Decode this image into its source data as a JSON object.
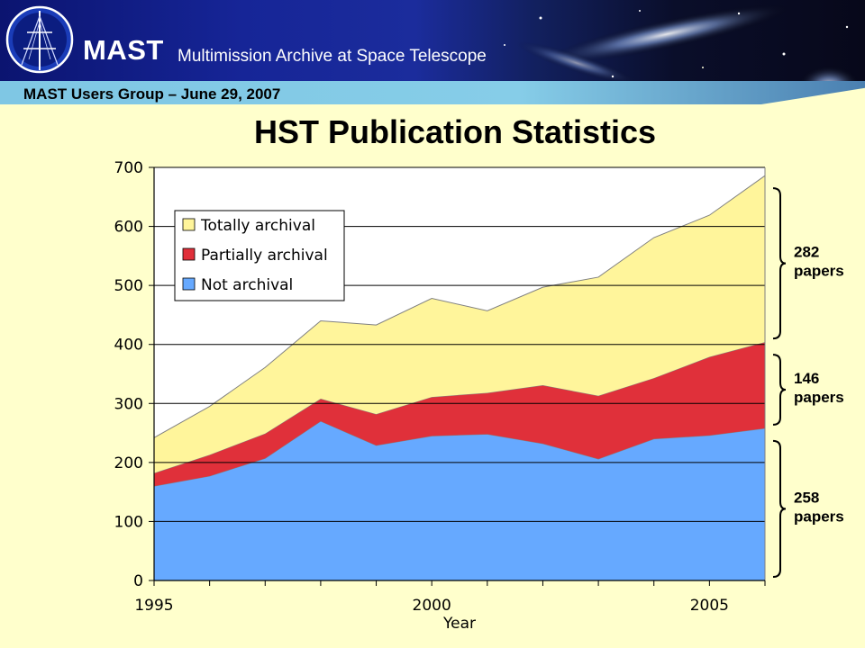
{
  "header": {
    "app_name": "MAST",
    "app_subtitle": "Multimission Archive at Space Telescope",
    "meeting": "MAST Users Group – June 29, 2007"
  },
  "colors": {
    "totally": "#FFF59B",
    "partially": "#E0303A",
    "not": "#66A9FF",
    "background": "#FFFFCC"
  },
  "chart_data": {
    "type": "area",
    "stacked": true,
    "title": "HST Publication Statistics",
    "xlabel": "Year",
    "ylabel": "",
    "x": [
      1995,
      1996,
      1997,
      1998,
      1999,
      2000,
      2001,
      2002,
      2003,
      2004,
      2005,
      2006
    ],
    "xlim": [
      1995,
      2006
    ],
    "ylim": [
      0,
      700
    ],
    "x_ticks": [
      1995,
      2000,
      2005
    ],
    "y_ticks": [
      0,
      100,
      200,
      300,
      400,
      500,
      600,
      700
    ],
    "grid": true,
    "legend_position": "top-left",
    "series": [
      {
        "name": "Not archival",
        "values": [
          160,
          177,
          207,
          270,
          229,
          245,
          248,
          232,
          206,
          240,
          246,
          258
        ]
      },
      {
        "name": "Partially archival",
        "values": [
          22,
          36,
          42,
          38,
          53,
          66,
          70,
          99,
          107,
          103,
          133,
          146
        ]
      },
      {
        "name": "Totally archival",
        "values": [
          60,
          82,
          112,
          132,
          151,
          167,
          139,
          166,
          201,
          238,
          240,
          282
        ]
      }
    ],
    "annotations": [
      {
        "series": "Totally archival",
        "text": [
          "282",
          "papers"
        ]
      },
      {
        "series": "Partially archival",
        "text": [
          "146",
          "papers"
        ]
      },
      {
        "series": "Not archival",
        "text": [
          "258",
          "papers"
        ]
      }
    ]
  }
}
